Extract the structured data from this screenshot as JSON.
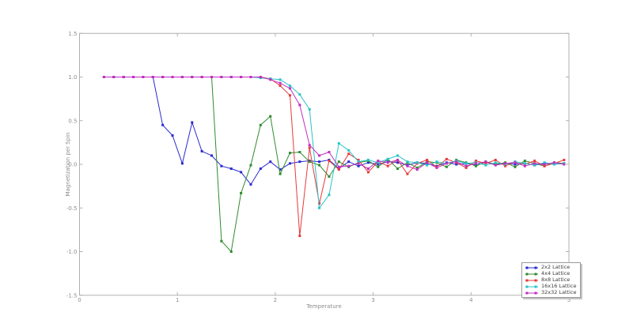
{
  "figure": {
    "background": "#ffffff"
  },
  "axes": {
    "xlabel": "Temperature",
    "ylabel": "Magnetization per Spin",
    "xlim": [
      0,
      5
    ],
    "ylim": [
      -1.5,
      1.5
    ],
    "xticks": [
      0,
      1,
      2,
      3,
      4,
      5
    ],
    "yticks": [
      -1.5,
      -1.0,
      -0.5,
      0.0,
      0.5,
      1.0,
      1.5
    ],
    "spine_color": "#b0b0b0",
    "tick_label_color": "#8c8c8c",
    "grid": false
  },
  "legend": {
    "position": "lower right",
    "shadow": true,
    "items": [
      "2x2 Lattice",
      "4x4 Lattice",
      "8x8 Lattice",
      "16x16 Lattice",
      "32x32 Lattice"
    ]
  },
  "chart_data": {
    "type": "line",
    "title": "",
    "xlabel": "Temperature",
    "ylabel": "Magnetization per Spin",
    "xlim": [
      0,
      5
    ],
    "ylim": [
      -1.5,
      1.5
    ],
    "xticks": [
      0,
      1,
      2,
      3,
      4,
      5
    ],
    "yticks": [
      -1.5,
      -1.0,
      -0.5,
      0.0,
      0.5,
      1.0,
      1.5
    ],
    "grid": false,
    "legend_position": "lower right",
    "marker": "square",
    "x": [
      0.25,
      0.35,
      0.45,
      0.55,
      0.65,
      0.75,
      0.85,
      0.95,
      1.05,
      1.15,
      1.25,
      1.35,
      1.45,
      1.55,
      1.65,
      1.75,
      1.85,
      1.95,
      2.05,
      2.15,
      2.25,
      2.35,
      2.45,
      2.55,
      2.65,
      2.75,
      2.85,
      2.95,
      3.05,
      3.15,
      3.25,
      3.35,
      3.45,
      3.55,
      3.65,
      3.75,
      3.85,
      3.95,
      4.05,
      4.15,
      4.25,
      4.35,
      4.45,
      4.55,
      4.65,
      4.75,
      4.85,
      4.95
    ],
    "series": [
      {
        "name": "2x2 Lattice",
        "color": "#2a2ad0",
        "values": [
          1.0,
          1.0,
          1.0,
          1.0,
          1.0,
          1.0,
          0.45,
          0.33,
          0.01,
          0.48,
          0.15,
          0.1,
          -0.02,
          -0.05,
          -0.09,
          -0.23,
          -0.05,
          0.03,
          -0.06,
          0.01,
          0.03,
          0.04,
          0.03,
          0.05,
          -0.05,
          0.03,
          -0.02,
          0.02,
          0.0,
          0.03,
          0.02,
          -0.01,
          0.02,
          0.01,
          -0.02,
          0.02,
          0.0,
          0.01,
          -0.01,
          0.02,
          0.0,
          0.01,
          0.0,
          0.01,
          -0.01,
          0.01,
          0.0,
          0.01
        ]
      },
      {
        "name": "4x4 Lattice",
        "color": "#2f8b2f",
        "values": [
          1.0,
          1.0,
          1.0,
          1.0,
          1.0,
          1.0,
          1.0,
          1.0,
          1.0,
          1.0,
          1.0,
          1.0,
          -0.88,
          -1.0,
          -0.33,
          -0.01,
          0.45,
          0.55,
          -0.11,
          0.13,
          0.14,
          0.03,
          -0.01,
          -0.14,
          0.03,
          -0.03,
          0.02,
          0.04,
          -0.03,
          0.06,
          -0.05,
          0.02,
          -0.04,
          0.03,
          0.02,
          -0.03,
          0.05,
          0.02,
          -0.02,
          0.03,
          0.0,
          0.02,
          -0.03,
          0.04,
          0.01,
          -0.02,
          0.02,
          0.01
        ]
      },
      {
        "name": "8x8 Lattice",
        "color": "#e73a3a",
        "values": [
          1.0,
          1.0,
          1.0,
          1.0,
          1.0,
          1.0,
          1.0,
          1.0,
          1.0,
          1.0,
          1.0,
          1.0,
          1.0,
          1.0,
          1.0,
          1.0,
          1.0,
          0.98,
          0.9,
          0.79,
          -0.82,
          0.19,
          -0.45,
          0.04,
          -0.06,
          0.12,
          0.05,
          -0.09,
          0.03,
          -0.02,
          0.05,
          -0.11,
          0.01,
          0.05,
          -0.03,
          0.06,
          0.02,
          -0.04,
          0.04,
          0.01,
          0.05,
          -0.02,
          0.03,
          0.0,
          0.04,
          -0.02,
          0.01,
          0.05
        ]
      },
      {
        "name": "16x16 Lattice",
        "color": "#29c4c9",
        "values": [
          1.0,
          1.0,
          1.0,
          1.0,
          1.0,
          1.0,
          1.0,
          1.0,
          1.0,
          1.0,
          1.0,
          1.0,
          1.0,
          1.0,
          1.0,
          1.0,
          0.99,
          0.98,
          0.97,
          0.9,
          0.8,
          0.63,
          -0.5,
          -0.35,
          0.24,
          0.16,
          0.03,
          0.05,
          0.02,
          0.06,
          0.1,
          0.03,
          0.02,
          -0.01,
          0.03,
          0.01,
          0.04,
          0.01,
          0.02,
          -0.01,
          0.02,
          0.0,
          0.03,
          0.01,
          -0.01,
          0.02,
          0.0,
          0.01
        ]
      },
      {
        "name": "32x32 Lattice",
        "color": "#c12fc1",
        "values": [
          1.0,
          1.0,
          1.0,
          1.0,
          1.0,
          1.0,
          1.0,
          1.0,
          1.0,
          1.0,
          1.0,
          1.0,
          1.0,
          1.0,
          1.0,
          1.0,
          1.0,
          0.97,
          0.93,
          0.87,
          0.68,
          0.22,
          0.1,
          0.14,
          -0.03,
          -0.02,
          0.01,
          -0.05,
          0.04,
          0.02,
          0.05,
          -0.02,
          -0.06,
          0.02,
          -0.04,
          0.01,
          0.03,
          -0.02,
          0.01,
          0.03,
          -0.01,
          0.01,
          0.02,
          -0.02,
          0.01,
          0.0,
          0.02,
          0.0
        ]
      }
    ]
  }
}
